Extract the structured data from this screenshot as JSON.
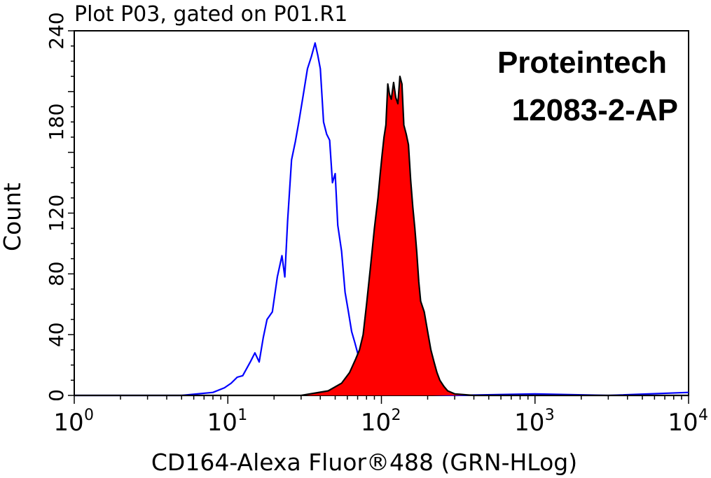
{
  "chart_data": {
    "type": "area",
    "title": "Plot P03, gated on P01.R1",
    "xlabel": "CD164-Alexa Fluor®488 (GRN-HLog)",
    "ylabel": "Count",
    "x_scale": "log",
    "xlim": [
      1,
      10000
    ],
    "ylim": [
      0,
      240
    ],
    "y_ticks": [
      0,
      40,
      80,
      120,
      180,
      240
    ],
    "y_tick_labels": [
      "0",
      "40",
      "80",
      "120",
      "180",
      "240"
    ],
    "x_ticks": [
      1,
      10,
      100,
      1000,
      10000
    ],
    "x_tick_labels": [
      {
        "base": "10",
        "exp": "0"
      },
      {
        "base": "10",
        "exp": "1"
      },
      {
        "base": "10",
        "exp": "2"
      },
      {
        "base": "10",
        "exp": "3"
      },
      {
        "base": "10",
        "exp": "4"
      }
    ],
    "annotations": [
      "Proteintech",
      "12083-2-AP"
    ],
    "grid": false,
    "series": [
      {
        "style": "line",
        "color": "#0000ff",
        "x": [
          1,
          5,
          8,
          9.5,
          10.5,
          11.5,
          12.5,
          14,
          15,
          16,
          17,
          18,
          19.5,
          21,
          22.5,
          23.5,
          24.5,
          26,
          27.5,
          29,
          31,
          33,
          35,
          37,
          38.5,
          40,
          42,
          44,
          46,
          48,
          50,
          52,
          55,
          58,
          61,
          64,
          67,
          70,
          75,
          80,
          90,
          100,
          150,
          300,
          1000,
          3000,
          10000
        ],
        "y": [
          0,
          0,
          2,
          5,
          8,
          12,
          13,
          22,
          28,
          22,
          38,
          50,
          55,
          78,
          92,
          78,
          115,
          155,
          167,
          180,
          198,
          215,
          223,
          232,
          224,
          215,
          180,
          172,
          168,
          140,
          146,
          112,
          95,
          68,
          55,
          42,
          35,
          28,
          18,
          10,
          5,
          3,
          1,
          0,
          1,
          0,
          2
        ]
      },
      {
        "style": "filled",
        "color": "#ff0000",
        "edge_color": "#000000",
        "x": [
          1,
          30,
          45,
          55,
          62,
          68,
          72,
          76,
          80,
          85,
          90,
          95,
          98,
          101,
          104,
          107,
          110,
          113,
          116,
          120,
          124,
          128,
          132,
          136,
          140,
          145,
          150,
          155,
          160,
          165,
          170,
          175,
          180,
          190,
          200,
          210,
          220,
          230,
          240,
          255,
          270,
          300,
          400,
          10000
        ],
        "y": [
          0,
          0,
          3,
          8,
          15,
          24,
          30,
          40,
          60,
          85,
          110,
          130,
          145,
          158,
          170,
          178,
          205,
          198,
          195,
          206,
          196,
          192,
          210,
          205,
          178,
          172,
          165,
          142,
          124,
          110,
          94,
          75,
          62,
          55,
          42,
          30,
          22,
          15,
          10,
          6,
          3,
          1,
          0,
          0
        ]
      }
    ]
  }
}
